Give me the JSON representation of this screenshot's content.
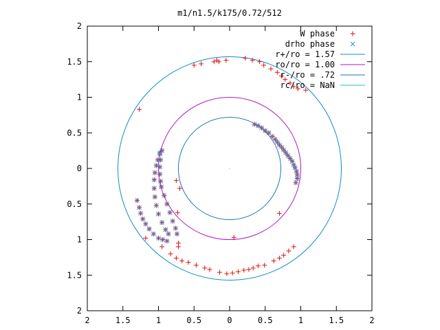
{
  "chart_data": {
    "type": "scatter",
    "title": "m1/n1.5/k175/0.72/512",
    "xlabel": "",
    "ylabel": "",
    "xlim": [
      -2,
      2
    ],
    "ylim": [
      -2,
      2
    ],
    "x_tick_labels": [
      "2",
      "1.5",
      "1",
      "0.5",
      "0",
      "0.5",
      "1",
      "1.5",
      "2"
    ],
    "y_tick_labels": [
      "2",
      "1.5",
      "1",
      "0.5",
      "0",
      "0.5",
      "1",
      "1.5",
      "2"
    ],
    "grid": false,
    "legend_position": "top-right",
    "circles": [
      {
        "name": "r+/ro = 1.57",
        "radius": 1.57,
        "color": "#0b8cc9"
      },
      {
        "name": "ro/ro = 1.00",
        "radius": 1.0,
        "color": "#b312c4"
      },
      {
        "name": "r-/ro = .72",
        "radius": 0.72,
        "color": "#1477b8"
      },
      {
        "name": "rc/ro = NaN",
        "radius": null,
        "color": "#11c7d4"
      }
    ],
    "series": [
      {
        "name": "W phase",
        "marker": "+",
        "color": "#e01010",
        "points": [
          [
            -1.27,
            0.83
          ],
          [
            -0.5,
            1.45
          ],
          [
            -0.4,
            1.47
          ],
          [
            -0.22,
            1.5
          ],
          [
            -0.18,
            1.52
          ],
          [
            -0.15,
            1.5
          ],
          [
            -0.05,
            1.52
          ],
          [
            0.22,
            1.55
          ],
          [
            0.32,
            1.52
          ],
          [
            0.42,
            1.5
          ],
          [
            0.48,
            1.45
          ],
          [
            0.58,
            1.4
          ],
          [
            0.67,
            1.35
          ],
          [
            0.73,
            1.3
          ],
          [
            0.78,
            1.25
          ],
          [
            0.85,
            1.2
          ],
          [
            0.9,
            1.15
          ],
          [
            0.96,
            1.12
          ],
          [
            1.07,
            1.1
          ],
          [
            0.35,
            0.62
          ],
          [
            0.4,
            0.6
          ],
          [
            0.45,
            0.57
          ],
          [
            0.5,
            0.53
          ],
          [
            0.55,
            0.5
          ],
          [
            0.6,
            0.45
          ],
          [
            0.64,
            0.41
          ],
          [
            0.67,
            0.37
          ],
          [
            0.7,
            0.33
          ],
          [
            0.73,
            0.3
          ],
          [
            0.76,
            0.26
          ],
          [
            0.79,
            0.22
          ],
          [
            0.82,
            0.18
          ],
          [
            0.85,
            0.14
          ],
          [
            0.88,
            0.1
          ],
          [
            0.9,
            0.05
          ],
          [
            0.92,
            0.01
          ],
          [
            0.94,
            -0.04
          ],
          [
            0.95,
            -0.09
          ],
          [
            0.95,
            -0.14
          ],
          [
            0.93,
            -0.2
          ],
          [
            -0.95,
            0.25
          ],
          [
            -0.98,
            0.2
          ],
          [
            -1.01,
            0.12
          ],
          [
            -1.03,
            0.04
          ],
          [
            -1.05,
            -0.06
          ],
          [
            -1.06,
            -0.16
          ],
          [
            -1.06,
            -0.28
          ],
          [
            -1.05,
            -0.4
          ],
          [
            -1.03,
            -0.52
          ],
          [
            -1.0,
            -0.64
          ],
          [
            -0.95,
            -0.76
          ],
          [
            -0.9,
            -0.86
          ],
          [
            -0.86,
            -0.92
          ],
          [
            -0.98,
            0.22
          ],
          [
            -0.97,
            0.12
          ],
          [
            -0.98,
            0.02
          ],
          [
            -0.98,
            -0.08
          ],
          [
            -0.97,
            -0.18
          ],
          [
            -0.96,
            -0.26
          ],
          [
            -0.92,
            -0.38
          ],
          [
            -0.88,
            -0.5
          ],
          [
            -0.84,
            -0.62
          ],
          [
            -0.8,
            -0.74
          ],
          [
            -0.76,
            -0.84
          ],
          [
            -0.74,
            -0.92
          ],
          [
            -1.3,
            -0.45
          ],
          [
            -1.27,
            -0.55
          ],
          [
            -1.25,
            -0.63
          ],
          [
            -1.22,
            -0.71
          ],
          [
            -1.18,
            -0.78
          ],
          [
            -1.13,
            -0.85
          ],
          [
            -1.07,
            -0.92
          ],
          [
            -1.0,
            -0.98
          ],
          [
            -0.94,
            -1.0
          ],
          [
            -0.88,
            -1.02
          ],
          [
            -1.18,
            -0.98
          ],
          [
            -0.95,
            -1.1
          ],
          [
            -0.83,
            -1.2
          ],
          [
            -0.75,
            -1.26
          ],
          [
            -0.67,
            -1.3
          ],
          [
            -0.58,
            -1.32
          ],
          [
            -0.47,
            -1.36
          ],
          [
            -0.35,
            -1.4
          ],
          [
            -0.28,
            -1.42
          ],
          [
            -0.14,
            -1.46
          ],
          [
            -0.04,
            -1.48
          ],
          [
            0.04,
            -1.47
          ],
          [
            0.12,
            -1.45
          ],
          [
            0.2,
            -1.43
          ],
          [
            0.27,
            -1.42
          ],
          [
            0.33,
            -1.4
          ],
          [
            0.4,
            -1.37
          ],
          [
            0.49,
            -1.36
          ],
          [
            0.62,
            -1.3
          ],
          [
            0.7,
            -1.26
          ],
          [
            0.76,
            -1.22
          ],
          [
            0.83,
            -1.16
          ],
          [
            0.9,
            -1.1
          ],
          [
            -0.75,
            -0.17
          ],
          [
            -0.7,
            -0.28
          ],
          [
            -0.73,
            -0.62
          ],
          [
            -0.72,
            -1.05
          ],
          [
            -0.72,
            -1.1
          ],
          [
            0.7,
            -0.63
          ],
          [
            0.06,
            -0.97
          ]
        ]
      },
      {
        "name": "drho phase",
        "marker": "x",
        "color": "#2a8ad8",
        "points": [
          [
            0.35,
            0.62
          ],
          [
            0.4,
            0.6
          ],
          [
            0.45,
            0.57
          ],
          [
            0.5,
            0.53
          ],
          [
            0.55,
            0.5
          ],
          [
            0.6,
            0.45
          ],
          [
            0.64,
            0.41
          ],
          [
            0.67,
            0.37
          ],
          [
            0.7,
            0.33
          ],
          [
            0.73,
            0.3
          ],
          [
            0.76,
            0.26
          ],
          [
            0.79,
            0.22
          ],
          [
            0.82,
            0.18
          ],
          [
            0.85,
            0.14
          ],
          [
            0.88,
            0.1
          ],
          [
            0.9,
            0.05
          ],
          [
            0.92,
            0.01
          ],
          [
            0.94,
            -0.04
          ],
          [
            0.95,
            -0.09
          ],
          [
            0.95,
            -0.14
          ],
          [
            0.93,
            -0.2
          ],
          [
            -0.95,
            0.25
          ],
          [
            -0.98,
            0.2
          ],
          [
            -1.01,
            0.12
          ],
          [
            -1.03,
            0.04
          ],
          [
            -1.05,
            -0.06
          ],
          [
            -1.06,
            -0.16
          ],
          [
            -1.06,
            -0.28
          ],
          [
            -1.05,
            -0.4
          ],
          [
            -1.03,
            -0.52
          ],
          [
            -1.0,
            -0.64
          ],
          [
            -0.95,
            -0.76
          ],
          [
            -0.9,
            -0.86
          ],
          [
            -0.86,
            -0.92
          ],
          [
            -0.98,
            0.22
          ],
          [
            -0.97,
            0.12
          ],
          [
            -0.98,
            0.02
          ],
          [
            -0.98,
            -0.08
          ],
          [
            -0.97,
            -0.18
          ],
          [
            -0.96,
            -0.26
          ],
          [
            -0.92,
            -0.38
          ],
          [
            -0.88,
            -0.5
          ],
          [
            -0.84,
            -0.62
          ],
          [
            -0.8,
            -0.74
          ],
          [
            -0.76,
            -0.84
          ],
          [
            -0.74,
            -0.92
          ],
          [
            -1.3,
            -0.45
          ],
          [
            -1.27,
            -0.55
          ],
          [
            -1.25,
            -0.63
          ],
          [
            -1.22,
            -0.71
          ],
          [
            -1.18,
            -0.78
          ],
          [
            -1.13,
            -0.85
          ],
          [
            -1.07,
            -0.92
          ],
          [
            -1.0,
            -0.98
          ],
          [
            -0.94,
            -1.0
          ],
          [
            -0.88,
            -1.02
          ]
        ]
      }
    ]
  }
}
